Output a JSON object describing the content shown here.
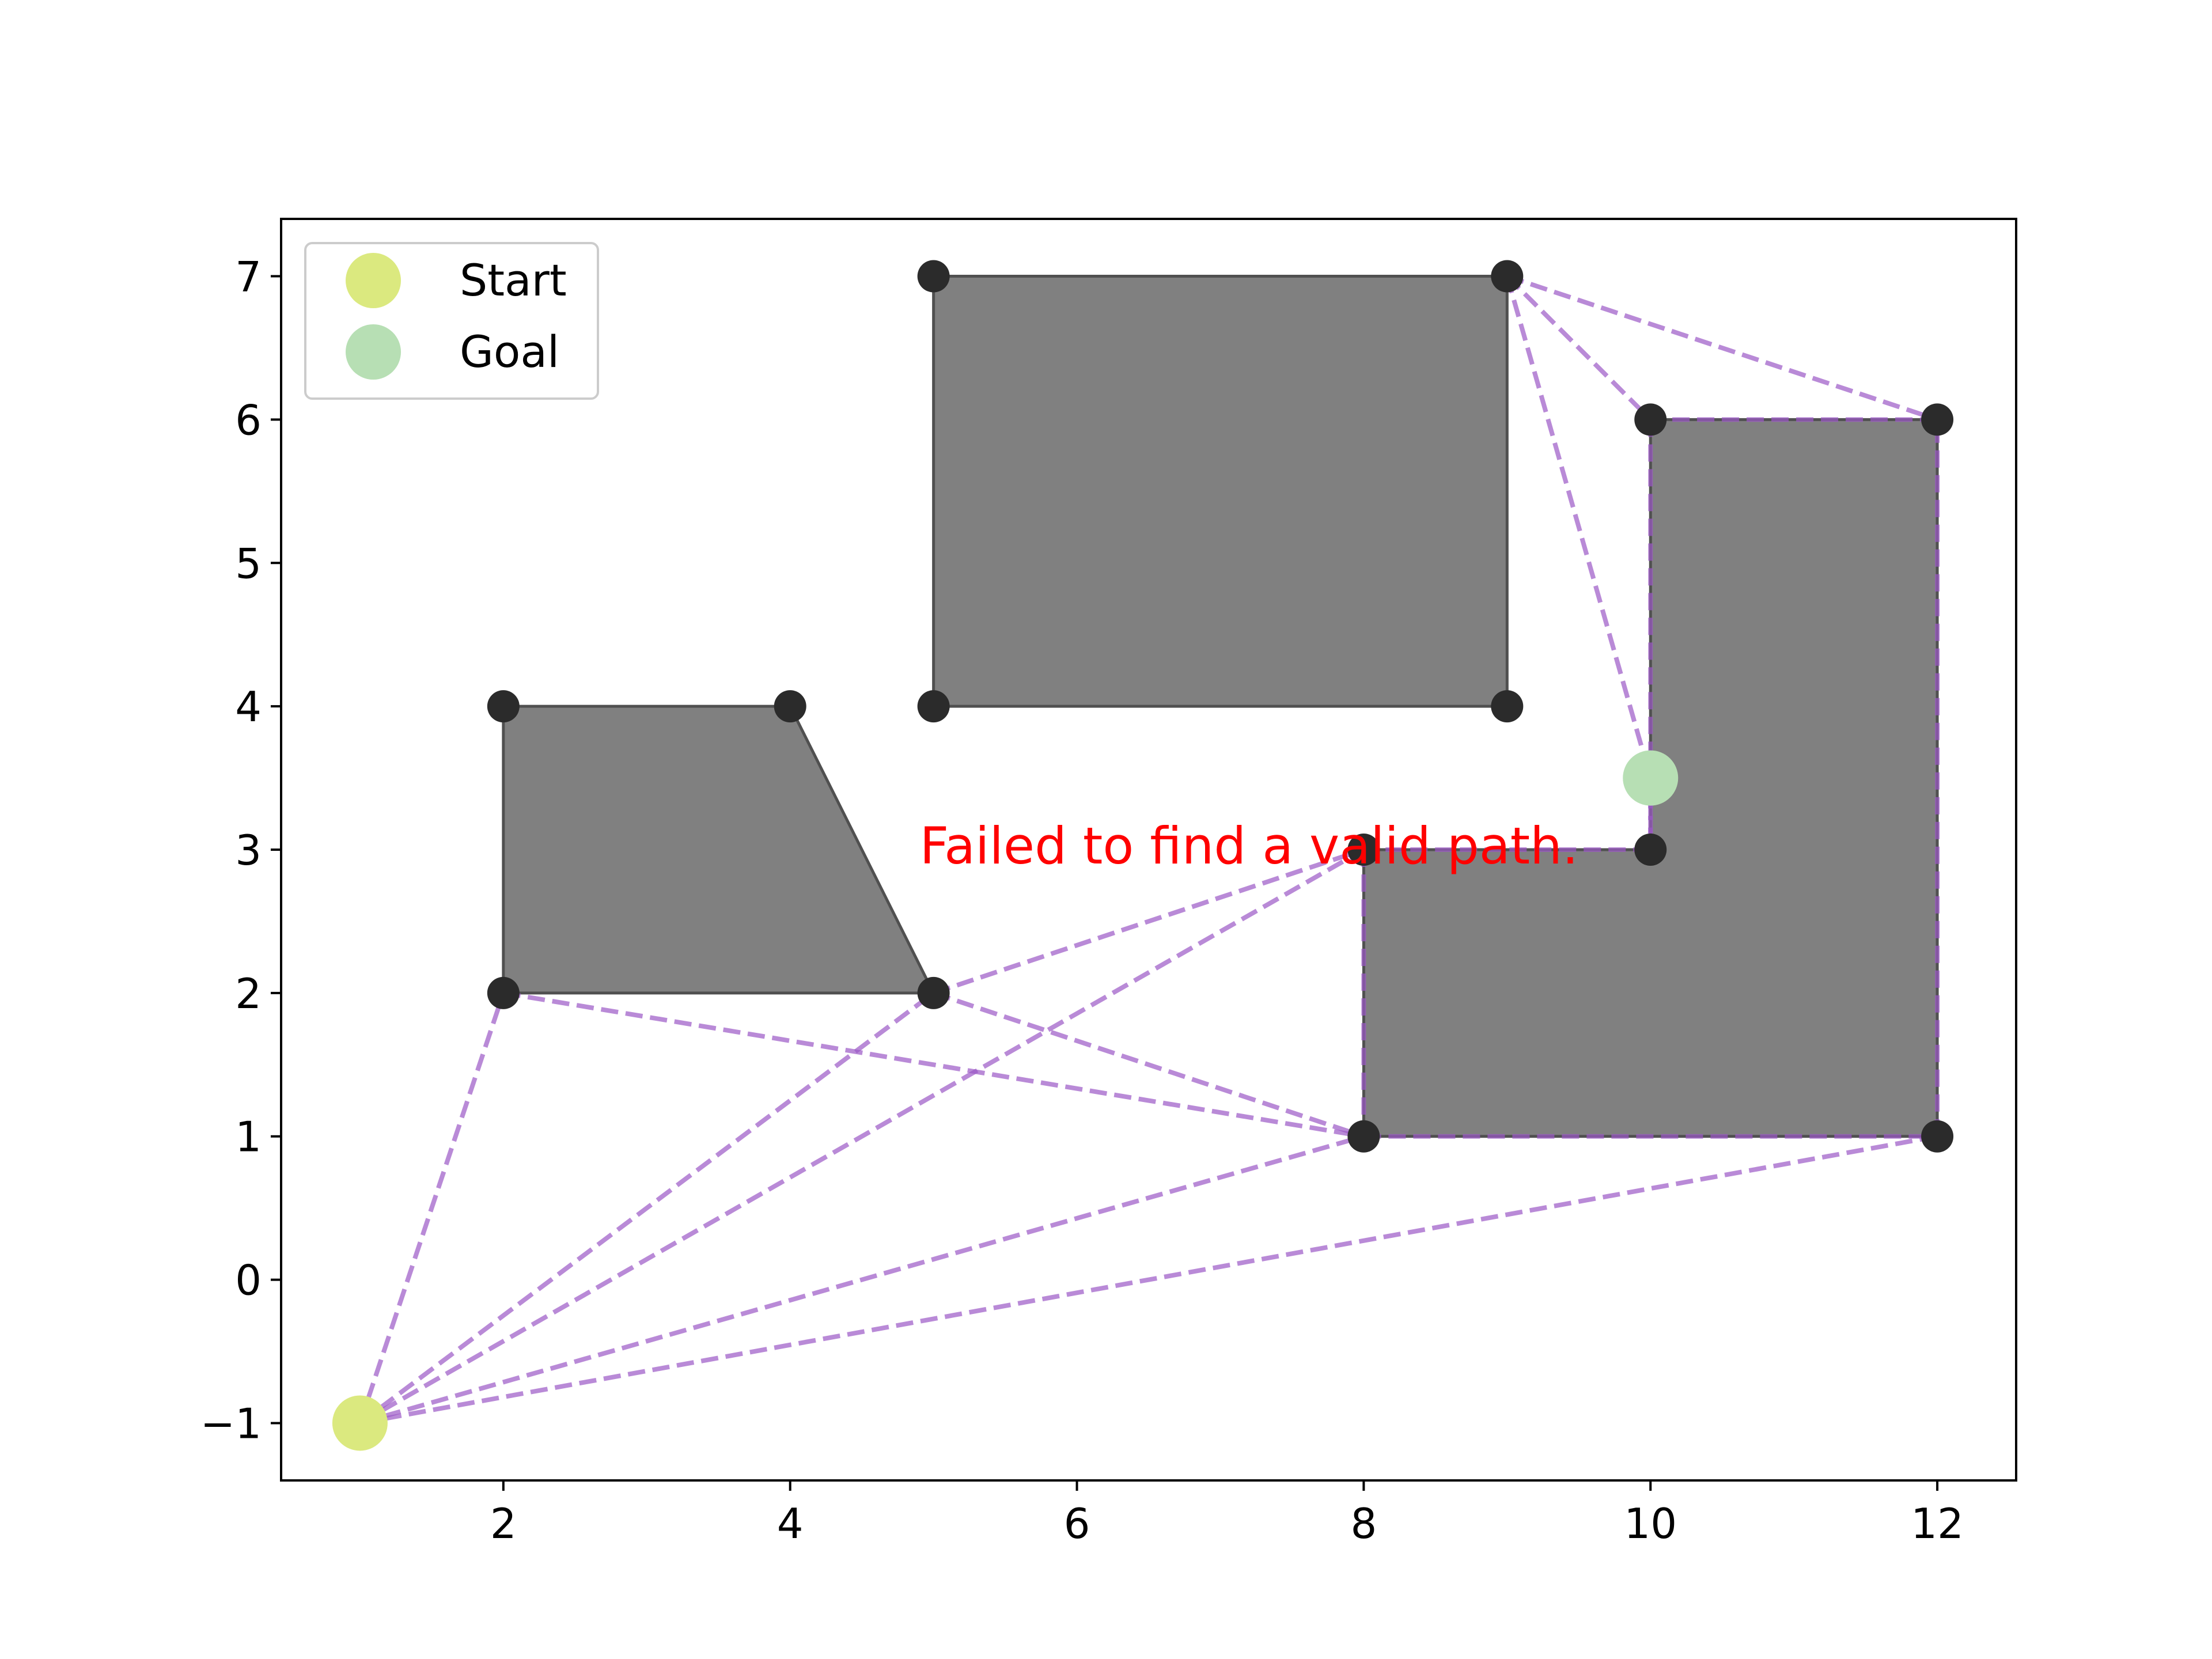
{
  "chart_data": {
    "type": "scatter",
    "xlim": [
      0.45,
      12.55
    ],
    "ylim": [
      -1.4,
      7.4
    ],
    "x_ticks": [
      2,
      4,
      6,
      8,
      10,
      12
    ],
    "y_ticks": [
      -1,
      0,
      1,
      2,
      3,
      4,
      5,
      6,
      7
    ],
    "x_tick_labels": [
      "2",
      "4",
      "6",
      "8",
      "10",
      "12"
    ],
    "y_tick_labels": [
      "−1",
      "0",
      "1",
      "2",
      "3",
      "4",
      "5",
      "6",
      "7"
    ],
    "grid": false,
    "legend_position": "top-left",
    "obstacles": [
      {
        "vertices": [
          [
            2,
            2
          ],
          [
            5,
            2
          ],
          [
            4,
            4
          ],
          [
            2,
            4
          ]
        ]
      },
      {
        "vertices": [
          [
            5,
            4
          ],
          [
            9,
            4
          ],
          [
            9,
            7
          ],
          [
            5,
            7
          ]
        ]
      },
      {
        "vertices": [
          [
            8,
            1
          ],
          [
            12,
            1
          ],
          [
            12,
            6
          ],
          [
            10,
            6
          ],
          [
            10,
            3
          ],
          [
            8,
            3
          ]
        ]
      }
    ],
    "vertex_points": [
      [
        2,
        2
      ],
      [
        5,
        2
      ],
      [
        4,
        4
      ],
      [
        2,
        4
      ],
      [
        5,
        4
      ],
      [
        9,
        4
      ],
      [
        9,
        7
      ],
      [
        5,
        7
      ],
      [
        8,
        1
      ],
      [
        12,
        1
      ],
      [
        12,
        6
      ],
      [
        10,
        6
      ],
      [
        10,
        3
      ],
      [
        8,
        3
      ]
    ],
    "visibility_edges": [
      [
        [
          1,
          -1
        ],
        [
          2,
          2
        ]
      ],
      [
        [
          1,
          -1
        ],
        [
          5,
          2
        ]
      ],
      [
        [
          1,
          -1
        ],
        [
          8,
          3
        ]
      ],
      [
        [
          1,
          -1
        ],
        [
          8,
          1
        ]
      ],
      [
        [
          1,
          -1
        ],
        [
          12,
          1
        ]
      ],
      [
        [
          2,
          2
        ],
        [
          8,
          1
        ]
      ],
      [
        [
          5,
          2
        ],
        [
          8,
          1
        ]
      ],
      [
        [
          5,
          2
        ],
        [
          8,
          3
        ]
      ],
      [
        [
          9,
          7
        ],
        [
          10,
          6
        ]
      ],
      [
        [
          9,
          7
        ],
        [
          12,
          6
        ]
      ],
      [
        [
          9,
          7
        ],
        [
          10,
          3.5
        ]
      ],
      [
        [
          10,
          3.5
        ],
        [
          10,
          3
        ]
      ],
      [
        [
          8,
          1
        ],
        [
          12,
          1
        ]
      ],
      [
        [
          12,
          1
        ],
        [
          12,
          6
        ]
      ],
      [
        [
          12,
          6
        ],
        [
          10,
          6
        ]
      ],
      [
        [
          10,
          6
        ],
        [
          10,
          3
        ]
      ],
      [
        [
          10,
          3
        ],
        [
          8,
          3
        ]
      ],
      [
        [
          8,
          3
        ],
        [
          8,
          1
        ]
      ]
    ],
    "start": {
      "label": "Start",
      "point": [
        1,
        -1
      ]
    },
    "goal": {
      "label": "Goal",
      "point": [
        10,
        3.5
      ]
    },
    "annotation": {
      "text": "Failed to find a valid path.",
      "x": 7.2,
      "y": 3
    },
    "colors": {
      "obstacle_fill": "#808080",
      "obstacle_edge": "#505050",
      "vertex": "#2b2b2b",
      "edge": "#9b59c6",
      "start": "#dbe97f",
      "goal": "#b7dfb4",
      "annotation": "#ff0000"
    }
  }
}
